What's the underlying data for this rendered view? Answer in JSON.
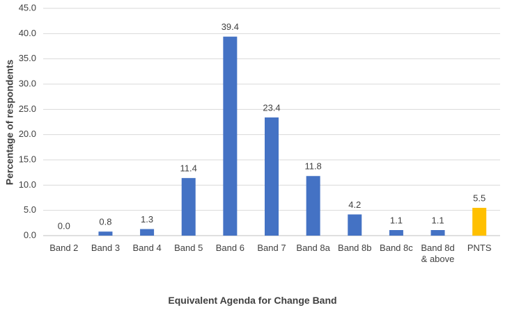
{
  "chart_data": {
    "type": "bar",
    "x_label": "Equivalent Agenda for Change Band",
    "y_label": "Percentage of respondents",
    "categories": [
      "Band 2",
      "Band 3",
      "Band 4",
      "Band 5",
      "Band 6",
      "Band 7",
      "Band 8a",
      "Band 8b",
      "Band 8c",
      "Band 8d & above",
      "PNTS"
    ],
    "values": [
      0.0,
      0.8,
      1.3,
      11.4,
      39.4,
      23.4,
      11.8,
      4.2,
      1.1,
      1.1,
      5.5
    ],
    "value_labels": [
      "0.0",
      "0.8",
      "1.3",
      "11.4",
      "39.4",
      "23.4",
      "11.8",
      "4.2",
      "1.1",
      "1.1",
      "5.5"
    ],
    "colors": [
      "#4472c4",
      "#4472c4",
      "#4472c4",
      "#4472c4",
      "#4472c4",
      "#4472c4",
      "#4472c4",
      "#4472c4",
      "#4472c4",
      "#4472c4",
      "#ffc000"
    ],
    "ylim": [
      0,
      45
    ],
    "yticks": [
      {
        "value": 0,
        "label": "0.0"
      },
      {
        "value": 5,
        "label": "5.0"
      },
      {
        "value": 10,
        "label": "10.0"
      },
      {
        "value": 15,
        "label": "15.0"
      },
      {
        "value": 20,
        "label": "20.0"
      },
      {
        "value": 25,
        "label": "25.0"
      },
      {
        "value": 30,
        "label": "30.0"
      },
      {
        "value": 35,
        "label": "35.0"
      },
      {
        "value": 40,
        "label": "40.0"
      },
      {
        "value": 45,
        "label": "45.0"
      }
    ],
    "grid": true
  }
}
